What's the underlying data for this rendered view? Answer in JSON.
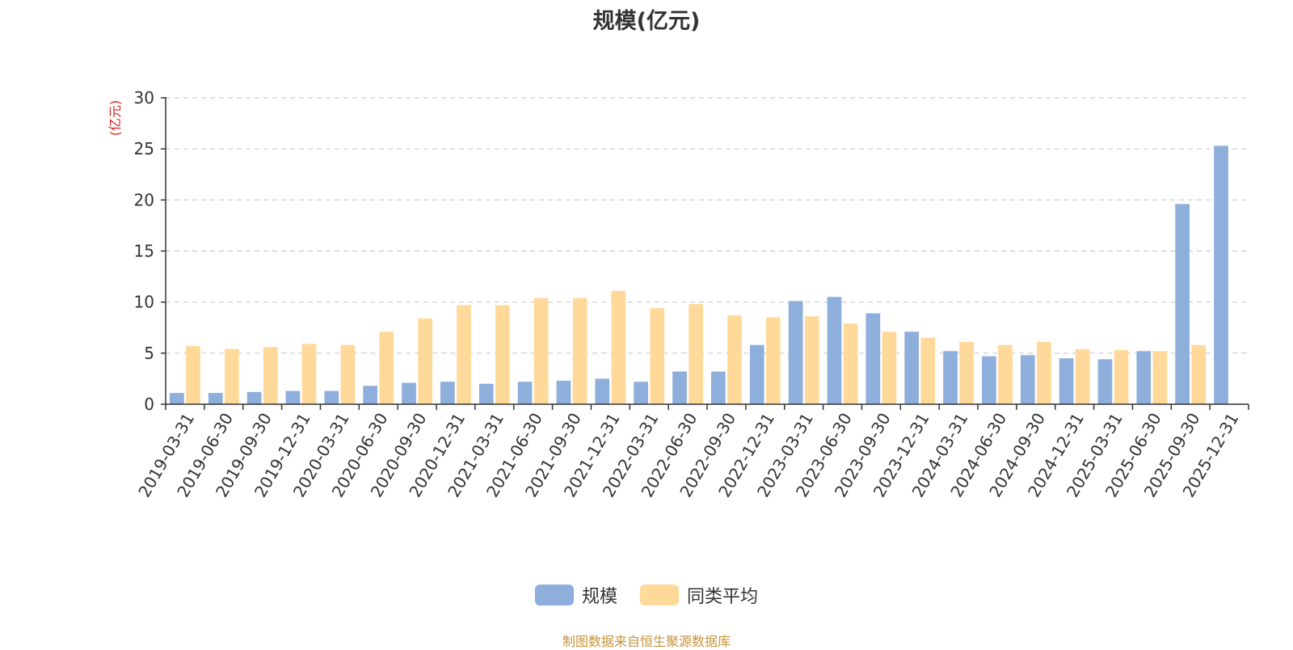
{
  "title": "规模(亿元)",
  "source_note": "制图数据来自恒生聚源数据库",
  "colors": {
    "series1": "#8eaedb",
    "series2": "#ffd999",
    "grid": "#cccccc",
    "axis": "#333333",
    "ylabel": "#e02020"
  },
  "chart_data": {
    "type": "bar",
    "title": "规模(亿元)",
    "ylabel": "(亿元)",
    "xlabel": "",
    "ylim": [
      0,
      30
    ],
    "yticks": [
      0,
      5,
      10,
      15,
      20,
      25,
      30
    ],
    "grid": true,
    "legend_position": "bottom",
    "categories": [
      "2019-03-31",
      "2019-06-30",
      "2019-09-30",
      "2019-12-31",
      "2020-03-31",
      "2020-06-30",
      "2020-09-30",
      "2020-12-31",
      "2021-03-31",
      "2021-06-30",
      "2021-09-30",
      "2021-12-31",
      "2022-03-31",
      "2022-06-30",
      "2022-09-30",
      "2022-12-31",
      "2023-03-31",
      "2023-06-30",
      "2023-09-30",
      "2023-12-31",
      "2024-03-31",
      "2024-06-30",
      "2024-09-30",
      "2024-12-31",
      "2025-03-31",
      "2025-06-30",
      "2025-09-30",
      "2025-12-31"
    ],
    "series": [
      {
        "name": "规模",
        "values": [
          1.1,
          1.1,
          1.2,
          1.3,
          1.3,
          1.8,
          2.1,
          2.2,
          2.0,
          2.2,
          2.3,
          2.5,
          2.2,
          3.2,
          3.2,
          5.8,
          10.1,
          10.5,
          8.9,
          7.1,
          5.2,
          4.7,
          4.8,
          4.5,
          4.4,
          5.2,
          19.6,
          25.3
        ]
      },
      {
        "name": "同类平均",
        "values": [
          5.7,
          5.4,
          5.6,
          5.9,
          5.8,
          7.1,
          8.4,
          9.7,
          9.7,
          10.4,
          10.4,
          11.1,
          9.4,
          9.8,
          8.7,
          8.5,
          8.6,
          7.9,
          7.1,
          6.5,
          6.1,
          5.8,
          6.1,
          5.4,
          5.3,
          5.2,
          5.8,
          null
        ]
      }
    ]
  }
}
